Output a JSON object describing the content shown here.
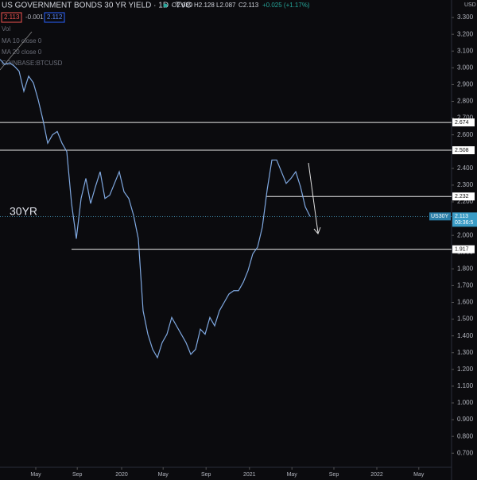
{
  "chart_data": {
    "type": "line",
    "title": "US GOVERNMENT BONDS 30 YR YIELD · 1D · TVC",
    "ohlc": [
      "O2.089",
      "H2.128",
      "L2.087",
      "C2.113",
      "+0.025 (+1.17%)"
    ],
    "boxes": [
      "2.113",
      "-0.001",
      "2.112"
    ],
    "indicators": [
      "Vol",
      "MA 10 close 0",
      "MA 20 close 0",
      "COINBASE:BTCUSD"
    ],
    "annotation": "30YR",
    "axis_unit": "USD",
    "symbol": "US30Y",
    "countdown": "03:36:5",
    "color": "#7fa8e0",
    "categories": [
      null,
      null,
      null,
      null,
      null,
      null,
      null,
      null,
      null,
      null,
      null,
      null,
      null,
      null,
      null,
      null,
      null,
      null,
      null,
      null,
      null,
      null,
      null,
      null,
      null,
      null,
      null,
      null,
      null,
      null,
      null,
      null,
      null,
      null,
      null,
      null,
      null,
      null,
      null,
      null,
      null,
      null,
      null,
      null,
      null,
      null,
      null,
      null,
      null,
      null,
      null,
      null,
      null,
      null,
      null,
      null,
      null,
      null,
      null,
      null,
      null,
      null,
      null,
      null,
      null,
      null
    ],
    "values": [
      3.05,
      3.02,
      3.03,
      3.01,
      2.98,
      2.86,
      2.95,
      2.91,
      2.81,
      2.69,
      2.55,
      2.6,
      2.62,
      2.55,
      2.5,
      2.19,
      1.98,
      2.22,
      2.34,
      2.19,
      2.29,
      2.38,
      2.22,
      2.24,
      2.31,
      2.38,
      2.26,
      2.22,
      2.12,
      1.98,
      1.55,
      1.41,
      1.32,
      1.27,
      1.36,
      1.41,
      1.51,
      1.46,
      1.41,
      1.36,
      1.29,
      1.32,
      1.44,
      1.41,
      1.51,
      1.46,
      1.55,
      1.6,
      1.65,
      1.67,
      1.67,
      1.72,
      1.79,
      1.89,
      1.93,
      2.05,
      2.27,
      2.45,
      2.45,
      2.38,
      2.31,
      2.34,
      2.38,
      2.29,
      2.17,
      2.113
    ],
    "levels": [
      2.674,
      2.508,
      2.232,
      1.917
    ],
    "ylim": [
      0.63,
      3.4
    ],
    "yticks": [
      {
        "value": 0.7,
        "label": "0.700"
      },
      {
        "value": 0.8,
        "label": "0.800"
      },
      {
        "value": 0.9,
        "label": "0.900"
      },
      {
        "value": 1.0,
        "label": "1.000"
      },
      {
        "value": 1.1,
        "label": "1.100"
      },
      {
        "value": 1.2,
        "label": "1.200"
      },
      {
        "value": 1.3,
        "label": "1.300"
      },
      {
        "value": 1.4,
        "label": "1.400"
      },
      {
        "value": 1.5,
        "label": "1.500"
      },
      {
        "value": 1.6,
        "label": "1.600"
      },
      {
        "value": 1.7,
        "label": "1.700"
      },
      {
        "value": 1.8,
        "label": "1.800"
      },
      {
        "value": 1.9,
        "label": "1.900"
      },
      {
        "value": 2.0,
        "label": "2.000"
      },
      {
        "value": 2.2,
        "label": "2.200"
      },
      {
        "value": 2.3,
        "label": "2.300"
      },
      {
        "value": 2.4,
        "label": "2.400"
      },
      {
        "value": 2.6,
        "label": "2.600"
      },
      {
        "value": 2.7,
        "label": "2.700"
      },
      {
        "value": 2.8,
        "label": "2.800"
      },
      {
        "value": 2.9,
        "label": "2.900"
      },
      {
        "value": 3.0,
        "label": "3.000"
      },
      {
        "value": 3.1,
        "label": "3.100"
      },
      {
        "value": 3.2,
        "label": "3.200"
      },
      {
        "value": 3.3,
        "label": "3.300"
      }
    ],
    "xticks": [
      {
        "value": 7.5,
        "label": "May"
      },
      {
        "value": 16.2,
        "label": "Sep"
      },
      {
        "value": 25.5,
        "label": "2020"
      },
      {
        "value": 34.2,
        "label": "May"
      },
      {
        "value": 43.2,
        "label": "Sep"
      },
      {
        "value": 52.3,
        "label": "2021"
      },
      {
        "value": 61.2,
        "label": "May"
      },
      {
        "value": 70,
        "label": "Sep"
      },
      {
        "value": 79,
        "label": "2022"
      },
      {
        "value": 87.8,
        "label": "May"
      }
    ]
  }
}
